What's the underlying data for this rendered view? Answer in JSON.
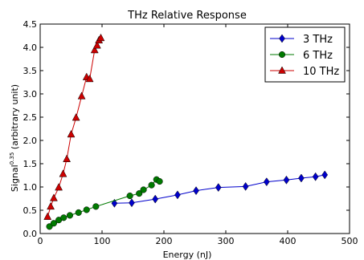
{
  "chart_data": {
    "type": "line",
    "title": "THz Relative Response",
    "xlabel": "Energy (nJ)",
    "ylabel_main": "Signal",
    "ylabel_exp": "0.35",
    "ylabel_rest": " (arbitrary unit)",
    "xlim": [
      0,
      500
    ],
    "ylim": [
      0,
      4.5
    ],
    "xticks": [
      "0",
      "100",
      "200",
      "300",
      "400",
      "500"
    ],
    "yticks": [
      "0.0",
      "0.5",
      "1.0",
      "1.5",
      "2.0",
      "2.5",
      "3.0",
      "3.5",
      "4.0",
      "4.5"
    ],
    "grid": false,
    "legend_position": "top-right",
    "series": [
      {
        "name": "3 THz",
        "color": "#0000cc",
        "marker": "diamond",
        "points": [
          [
            120,
            0.65
          ],
          [
            148,
            0.66
          ],
          [
            186,
            0.74
          ],
          [
            222,
            0.83
          ],
          [
            252,
            0.92
          ],
          [
            288,
            0.99
          ],
          [
            332,
            1.01
          ],
          [
            366,
            1.11
          ],
          [
            398,
            1.15
          ],
          [
            422,
            1.19
          ],
          [
            445,
            1.22
          ],
          [
            460,
            1.26
          ]
        ]
      },
      {
        "name": "6 THz",
        "color": "#007a00",
        "marker": "circle",
        "points": [
          [
            15,
            0.15
          ],
          [
            22,
            0.22
          ],
          [
            30,
            0.29
          ],
          [
            38,
            0.34
          ],
          [
            48,
            0.39
          ],
          [
            62,
            0.45
          ],
          [
            75,
            0.51
          ],
          [
            90,
            0.58
          ],
          [
            145,
            0.81
          ],
          [
            160,
            0.86
          ],
          [
            167,
            0.94
          ],
          [
            180,
            1.04
          ],
          [
            188,
            1.16
          ],
          [
            193,
            1.12
          ]
        ]
      },
      {
        "name": "10 THz",
        "color": "#cc0000",
        "marker": "triangle",
        "points": [
          [
            12,
            0.36
          ],
          [
            17,
            0.58
          ],
          [
            22,
            0.76
          ],
          [
            30,
            0.99
          ],
          [
            37,
            1.28
          ],
          [
            43,
            1.6
          ],
          [
            50,
            2.13
          ],
          [
            58,
            2.49
          ],
          [
            67,
            2.95
          ],
          [
            75,
            3.36
          ],
          [
            80,
            3.32
          ],
          [
            88,
            3.94
          ],
          [
            92,
            4.04
          ],
          [
            95,
            4.15
          ],
          [
            98,
            4.2
          ]
        ]
      }
    ]
  }
}
